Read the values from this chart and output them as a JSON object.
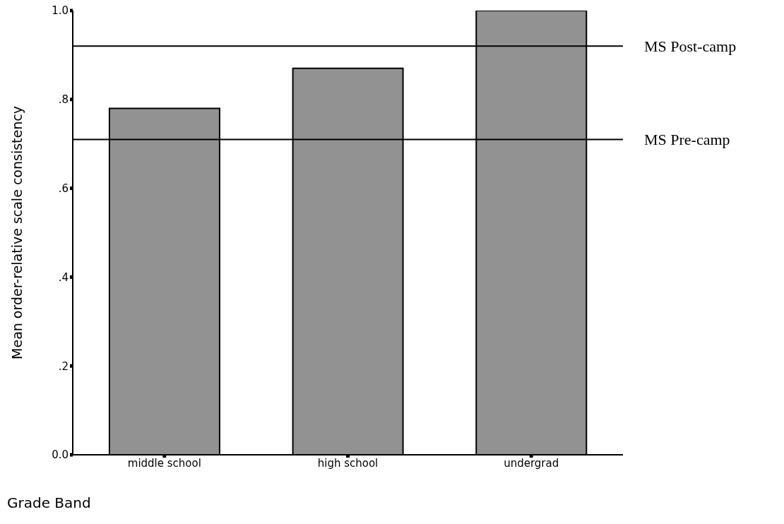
{
  "chart_data": {
    "type": "bar",
    "xlabel": "Grade Band",
    "ylabel": "Mean order-relative scale consistency",
    "categories": [
      "middle school",
      "high school",
      "undergrad"
    ],
    "values": [
      0.78,
      0.87,
      1.0
    ],
    "color": "#929292",
    "ylim": [
      0,
      1
    ],
    "yticks": [
      {
        "value": 0,
        "label": "0.0"
      },
      {
        "value": 0.2,
        "label": ".2"
      },
      {
        "value": 0.4,
        "label": ".4"
      },
      {
        "value": 0.6,
        "label": ".6"
      },
      {
        "value": 0.8,
        "label": ".8"
      },
      {
        "value": 1,
        "label": "1.0"
      }
    ],
    "ref_lines": [
      {
        "axis": "y",
        "value": 0.92,
        "label": "MS Post-camp",
        "color": "#000000"
      },
      {
        "axis": "y",
        "value": 0.71,
        "label": "MS Pre-camp",
        "color": "#000000"
      }
    ],
    "grid": false,
    "legend": false
  }
}
